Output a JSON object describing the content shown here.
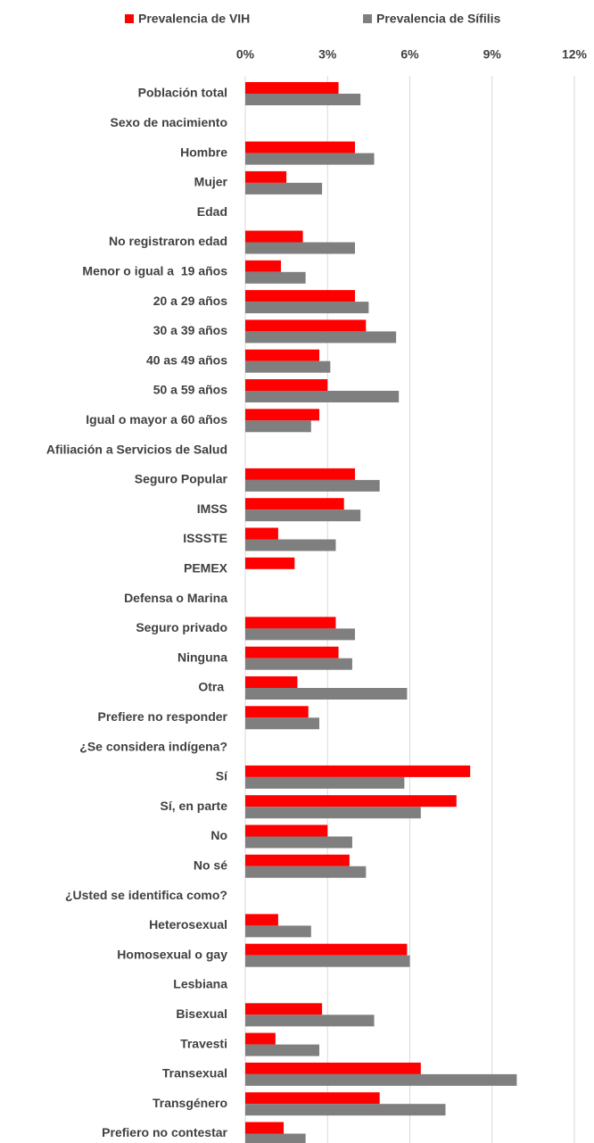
{
  "chart_data": {
    "type": "bar",
    "orientation": "horizontal",
    "categories": [
      "Población total",
      "Sexo de nacimiento",
      "Hombre",
      "Mujer",
      "Edad",
      "No registraron edad",
      "Menor o igual a  19 años",
      "20 a 29 años",
      "30 a 39 años",
      "40 as 49 años",
      "50 a 59 años",
      "Igual o mayor a 60 años",
      "Afiliación a Servicios de Salud",
      "Seguro Popular",
      "IMSS",
      "ISSSTE",
      "PEMEX",
      "Defensa o Marina",
      "Seguro privado",
      "Ninguna",
      "Otra ",
      "Prefiere no responder",
      "¿Se considera indígena?",
      "Sí",
      "Sí, en parte",
      "No",
      "No sé",
      "¿Usted se identifica como?",
      "Heterosexual",
      "Homosexual o gay",
      "Lesbiana",
      "Bisexual",
      "Travesti",
      "Transexual",
      "Transgénero",
      "Prefiero no contestar"
    ],
    "series": [
      {
        "name": "Prevalencia de VIH",
        "color": "#ff0000",
        "values": [
          3.4,
          null,
          4.0,
          1.5,
          null,
          2.1,
          1.3,
          4.0,
          4.4,
          2.7,
          3.0,
          2.7,
          null,
          4.0,
          3.6,
          1.2,
          1.8,
          null,
          3.3,
          3.4,
          1.9,
          2.3,
          null,
          8.2,
          7.7,
          3.0,
          3.8,
          null,
          1.2,
          5.9,
          null,
          2.8,
          1.1,
          6.4,
          4.9,
          1.4
        ]
      },
      {
        "name": "Prevalencia de Sífilis",
        "color": "#7f7f7f",
        "values": [
          4.2,
          null,
          4.7,
          2.8,
          null,
          4.0,
          2.2,
          4.5,
          5.5,
          3.1,
          5.6,
          2.4,
          null,
          4.9,
          4.2,
          3.3,
          null,
          null,
          4.0,
          3.9,
          5.9,
          2.7,
          null,
          5.8,
          6.4,
          3.9,
          4.4,
          null,
          2.4,
          6.0,
          null,
          4.7,
          2.7,
          9.9,
          7.3,
          2.2
        ]
      }
    ],
    "xlim": [
      0,
      12
    ],
    "xticks": [
      {
        "value": 0,
        "label": "0%"
      },
      {
        "value": 3,
        "label": "3%"
      },
      {
        "value": 6,
        "label": "6%"
      },
      {
        "value": 9,
        "label": "9%"
      },
      {
        "value": 12,
        "label": "12%"
      }
    ],
    "grid": true,
    "legend": "top"
  }
}
